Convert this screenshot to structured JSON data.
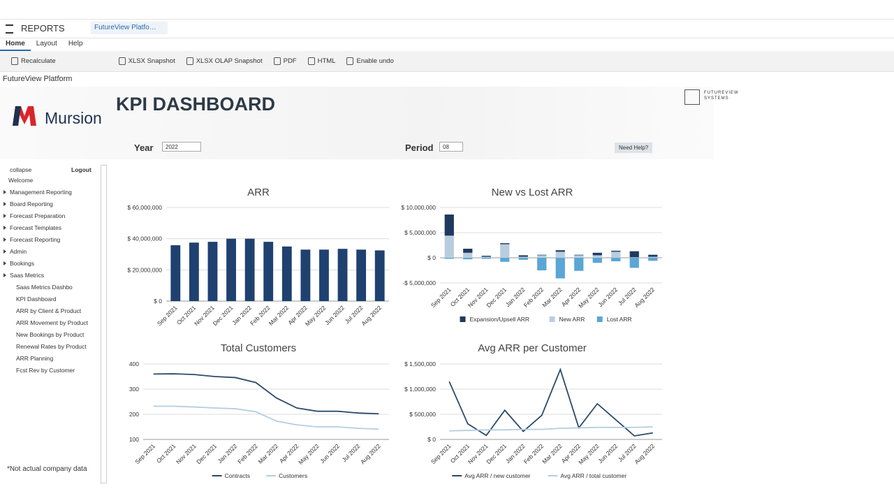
{
  "app": {
    "section": "REPORTS",
    "tab": "FutureView Platfo…",
    "menu": [
      "Home",
      "Layout",
      "Help"
    ],
    "toolbar": [
      "Recalculate",
      "XLSX Snapshot",
      "XLSX OLAP Snapshot",
      "PDF",
      "HTML",
      "Enable undo"
    ],
    "breadcrumb": "FutureView Platform"
  },
  "header": {
    "brand": "Mursion",
    "title": "KPI DASHBOARD",
    "partner_line1": "FUTUREVIEW",
    "partner_line2": "SYSTEMS",
    "year_label": "Year",
    "year": "2022",
    "period_label": "Period",
    "period": "08",
    "help": "Need Help?"
  },
  "sidebar": {
    "collapse": "collapse",
    "logout": "Logout",
    "welcome": "Welcome",
    "items": [
      "Management Reporting",
      "Board Reporting",
      "Forecast Preparation",
      "Forecast Templates",
      "Forecast Reporting",
      "Admin",
      "Bookings",
      "Saas Metrics"
    ],
    "subitems": [
      "Saas Metrics Dashbo",
      "KPI Dashboard",
      "ARR by Client & Product",
      "ARR Movement by Product",
      "New Bookings by Product",
      "Renewal Rates by Product",
      "ARR Planning",
      "Fcst Rev by Customer"
    ]
  },
  "note": "*Not actual company data",
  "chart_data": [
    {
      "type": "bar",
      "title": "ARR",
      "categories": [
        "Sep 2021",
        "Oct 2021",
        "Nov 2021",
        "Dec 2021",
        "Jan 2022",
        "Feb 2022",
        "Mar 2022",
        "Apr 2022",
        "May 2022",
        "Jun 2022",
        "Jul 2022",
        "Aug 2022"
      ],
      "values": [
        35800000,
        37500000,
        38000000,
        40000000,
        40000000,
        38000000,
        35000000,
        33000000,
        33000000,
        33500000,
        33000000,
        32500000
      ],
      "color": "#1f4170",
      "ylim": [
        0,
        60000000
      ],
      "yticks": [
        {
          "value": 0,
          "label": "$ 0"
        },
        {
          "value": 20000000,
          "label": "$ 20,000,000"
        },
        {
          "value": 40000000,
          "label": "$ 40,000,000"
        },
        {
          "value": 60000000,
          "label": "$ 60,000,000"
        }
      ],
      "grid": true
    },
    {
      "type": "stacked-bar",
      "title": "New vs Lost ARR",
      "categories": [
        "Sep 2021",
        "Oct 2021",
        "Nov 2021",
        "Dec 2021",
        "Jan 2022",
        "Feb 2022",
        "Mar 2022",
        "Apr 2022",
        "May 2022",
        "Jun 2022",
        "Jul 2022",
        "Aug 2022"
      ],
      "series": [
        {
          "name": "Expansion/Upsell ARR",
          "color": "#1f3a5f",
          "values": [
            4200000,
            800000,
            200000,
            200000,
            300000,
            100000,
            300000,
            100000,
            500000,
            200000,
            1200000,
            400000
          ]
        },
        {
          "name": "New ARR",
          "color": "#b9cde0",
          "values": [
            4400000,
            1000000,
            200000,
            2700000,
            200000,
            500000,
            1200000,
            500000,
            500000,
            1200000,
            100000,
            200000
          ]
        },
        {
          "name": "Lost ARR",
          "color": "#5aa6d6",
          "values": [
            -200000,
            -300000,
            -200000,
            -800000,
            -400000,
            -2500000,
            -4100000,
            -2600000,
            -1000000,
            -700000,
            -2000000,
            -600000
          ]
        }
      ],
      "ylim": [
        -5000000,
        10000000
      ],
      "yticks": [
        {
          "value": -5000000,
          "label": "-$ 5,000,000"
        },
        {
          "value": 0,
          "label": "$ 0"
        },
        {
          "value": 5000000,
          "label": "$ 5,000,000"
        },
        {
          "value": 10000000,
          "label": "$ 10,000,000"
        }
      ],
      "grid": true
    },
    {
      "type": "line",
      "title": "Total Customers",
      "categories": [
        "Sep 2021",
        "Oct 2021",
        "Nov 2021",
        "Dec 2021",
        "Jan 2022",
        "Feb 2022",
        "Mar 2022",
        "Apr 2022",
        "May 2022",
        "Jun 2022",
        "Jul 2022",
        "Aug 2022"
      ],
      "series": [
        {
          "name": "Contracts",
          "color": "#2b4a6b",
          "values": [
            360,
            361,
            358,
            350,
            346,
            326,
            265,
            225,
            212,
            212,
            205,
            202
          ]
        },
        {
          "name": "Customers",
          "color": "#b5cde0",
          "values": [
            232,
            232,
            229,
            225,
            222,
            210,
            173,
            158,
            150,
            150,
            144,
            141
          ]
        }
      ],
      "ylim": [
        100,
        400
      ],
      "yticks": [
        100,
        200,
        300,
        400
      ],
      "grid": true
    },
    {
      "type": "line",
      "title": "Avg ARR per Customer",
      "categories": [
        "Sep 2021",
        "Oct 2021",
        "Nov 2021",
        "Dec 2021",
        "Jan 2022",
        "Feb 2022",
        "Mar 2022",
        "Apr 2022",
        "May 2022",
        "Jun 2022",
        "Jul 2022",
        "Aug 2022"
      ],
      "series": [
        {
          "name": "Avg ARR / new customer",
          "color": "#2b4a6b",
          "values": [
            1150000,
            310000,
            80000,
            580000,
            160000,
            480000,
            1390000,
            230000,
            710000,
            390000,
            70000,
            130000
          ]
        },
        {
          "name": "Avg ARR / total customer",
          "color": "#b5cde0",
          "values": [
            170000,
            180000,
            190000,
            190000,
            200000,
            200000,
            220000,
            230000,
            240000,
            240000,
            240000,
            250000
          ]
        }
      ],
      "ylim": [
        0,
        1500000
      ],
      "yticks": [
        {
          "value": 0,
          "label": "$ 0"
        },
        {
          "value": 500000,
          "label": "$ 500,000"
        },
        {
          "value": 1000000,
          "label": "$ 1,000,000"
        },
        {
          "value": 1500000,
          "label": "$ 1,500,000"
        }
      ],
      "grid": true
    }
  ]
}
